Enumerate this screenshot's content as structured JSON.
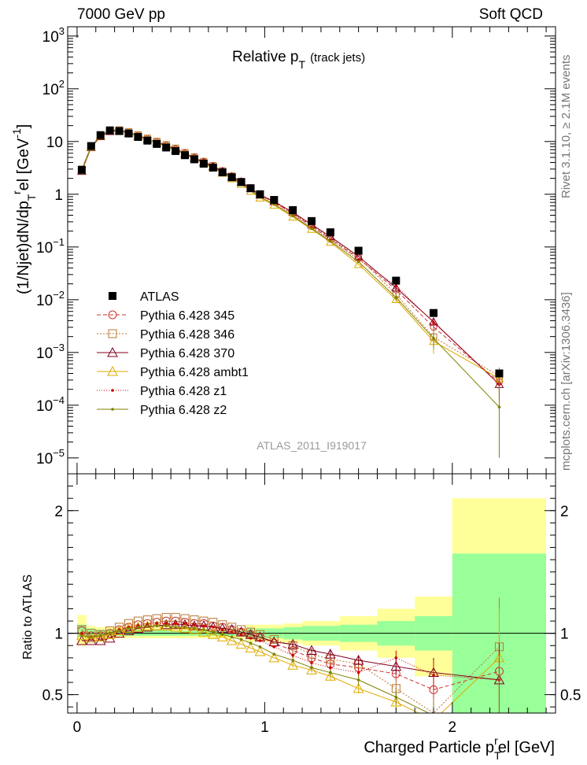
{
  "header": {
    "energy_label": "7000 GeV pp",
    "process_label": "Soft QCD",
    "panel_title": "Relative p",
    "panel_title_sub": "T",
    "panel_title_rest": "(track jets)",
    "analysis_id": "ATLAS_2011_I919017",
    "side_top": "Rivet 3.1.10, ≥ 2.1M events",
    "side_bottom": "mcplots.cern.ch [arXiv:1306.3436]"
  },
  "axes": {
    "y_main_label": "(1/Njet)dN/dp",
    "y_main_sub": "T",
    "y_main_sup": "r",
    "y_main_rest": "el [GeV",
    "y_main_exp": "-1",
    "y_main_close": "]",
    "y_ratio_label": "Ratio to ATLAS",
    "x_label": "Charged Particle p",
    "x_sub": "T",
    "x_sup": "r",
    "x_rest": "el [GeV]"
  },
  "chart_data": {
    "type": "line",
    "x": [
      0.025,
      0.075,
      0.125,
      0.175,
      0.225,
      0.275,
      0.325,
      0.375,
      0.425,
      0.475,
      0.525,
      0.575,
      0.625,
      0.675,
      0.725,
      0.775,
      0.825,
      0.875,
      0.925,
      0.975,
      1.05,
      1.15,
      1.25,
      1.35,
      1.5,
      1.7,
      1.9,
      2.25
    ],
    "xlim": [
      -0.05,
      2.55
    ],
    "ylim_main": [
      5e-06,
      1500
    ],
    "y_scale_main": "log",
    "ylim_ratio": [
      0.35,
      2.3
    ],
    "x_ticks": [
      0,
      1,
      2
    ],
    "x_tick_labels": [
      "0",
      "1",
      "2"
    ],
    "y_main_ticks": [
      {
        "v": 1000,
        "base": "10",
        "exp": "3"
      },
      {
        "v": 100,
        "base": "10",
        "exp": "2"
      },
      {
        "v": 10,
        "base": "10",
        "exp": ""
      },
      {
        "v": 1,
        "base": "1",
        "exp": ""
      },
      {
        "v": 0.1,
        "base": "10",
        "exp": "−1"
      },
      {
        "v": 0.01,
        "base": "10",
        "exp": "−2"
      },
      {
        "v": 0.001,
        "base": "10",
        "exp": "−3"
      },
      {
        "v": 0.0001,
        "base": "10",
        "exp": "−4"
      },
      {
        "v": 1e-05,
        "base": "10",
        "exp": "−5"
      }
    ],
    "y_ratio_ticks": [
      {
        "v": 0.5,
        "label": "0.5"
      },
      {
        "v": 1,
        "label": "1"
      },
      {
        "v": 2,
        "label": "2"
      }
    ],
    "data": {
      "name": "ATLAS",
      "values": [
        2.9,
        8.2,
        13.2,
        16.2,
        15.8,
        14.2,
        12.2,
        10.4,
        9.0,
        7.7,
        6.6,
        5.5,
        4.6,
        3.8,
        3.2,
        2.6,
        2.1,
        1.7,
        1.3,
        1.0,
        0.78,
        0.5,
        0.31,
        0.19,
        0.085,
        0.023,
        0.0056,
        0.0004
      ]
    },
    "bands": [
      {
        "x0": 0.0,
        "x1": 0.05,
        "inner": [
          0.97,
          1.07
        ],
        "outer": [
          0.9,
          1.15
        ]
      },
      {
        "x0": 0.05,
        "x1": 0.1,
        "inner": [
          0.97,
          1.04
        ],
        "outer": [
          0.94,
          1.06
        ]
      },
      {
        "x0": 0.1,
        "x1": 0.5,
        "inner": [
          0.98,
          1.03
        ],
        "outer": [
          0.96,
          1.05
        ]
      },
      {
        "x0": 0.5,
        "x1": 0.9,
        "inner": [
          0.98,
          1.02
        ],
        "outer": [
          0.96,
          1.04
        ]
      },
      {
        "x0": 0.9,
        "x1": 1.1,
        "inner": [
          0.96,
          1.04
        ],
        "outer": [
          0.93,
          1.07
        ]
      },
      {
        "x0": 1.1,
        "x1": 1.2,
        "inner": [
          0.95,
          1.05
        ],
        "outer": [
          0.92,
          1.08
        ]
      },
      {
        "x0": 1.2,
        "x1": 1.4,
        "inner": [
          0.94,
          1.06
        ],
        "outer": [
          0.9,
          1.1
        ]
      },
      {
        "x0": 1.4,
        "x1": 1.6,
        "inner": [
          0.93,
          1.07
        ],
        "outer": [
          0.86,
          1.14
        ]
      },
      {
        "x0": 1.6,
        "x1": 1.8,
        "inner": [
          0.9,
          1.1
        ],
        "outer": [
          0.8,
          1.2
        ]
      },
      {
        "x0": 1.8,
        "x1": 2.0,
        "inner": [
          0.86,
          1.14
        ],
        "outer": [
          0.65,
          1.3
        ]
      },
      {
        "x0": 2.0,
        "x1": 2.5,
        "inner": [
          0.35,
          1.65
        ],
        "outer": [
          0.35,
          2.1
        ]
      }
    ],
    "series": [
      {
        "name": "Pythia 6.428 345",
        "color": "#cc3333",
        "dash": "5,3",
        "marker": "circle",
        "ratio": [
          1.02,
          0.98,
          0.98,
          1.0,
          1.03,
          1.05,
          1.07,
          1.08,
          1.09,
          1.1,
          1.1,
          1.09,
          1.08,
          1.08,
          1.06,
          1.05,
          1.03,
          1.01,
          0.99,
          0.97,
          0.92,
          0.86,
          0.8,
          0.75,
          0.72,
          0.67,
          0.54,
          0.69
        ],
        "err": [
          0,
          0,
          0,
          0,
          0,
          0,
          0,
          0,
          0,
          0,
          0,
          0,
          0,
          0,
          0,
          0,
          0,
          0,
          0.01,
          0.01,
          0.01,
          0.02,
          0.02,
          0.03,
          0.04,
          0.06,
          0.12,
          0.3
        ]
      },
      {
        "name": "Pythia 6.428 346",
        "color": "#bb7733",
        "dash": "2,2",
        "marker": "square",
        "ratio": [
          1.03,
          1.0,
          0.99,
          1.02,
          1.05,
          1.08,
          1.1,
          1.11,
          1.12,
          1.13,
          1.13,
          1.12,
          1.11,
          1.1,
          1.09,
          1.07,
          1.05,
          1.03,
          1.01,
          0.99,
          0.95,
          0.9,
          0.83,
          0.79,
          0.75,
          0.55,
          0.35,
          0.89
        ],
        "err": [
          0,
          0,
          0,
          0,
          0,
          0,
          0,
          0,
          0,
          0,
          0,
          0,
          0,
          0,
          0,
          0,
          0,
          0,
          0.01,
          0.01,
          0.01,
          0.02,
          0.02,
          0.03,
          0.04,
          0.06,
          0.12,
          0.4
        ]
      },
      {
        "name": "Pythia 6.428 370",
        "color": "#800020",
        "dash": "",
        "marker": "triangle",
        "ratio": [
          0.94,
          0.94,
          0.94,
          0.96,
          1.0,
          1.02,
          1.04,
          1.05,
          1.06,
          1.07,
          1.07,
          1.07,
          1.06,
          1.06,
          1.05,
          1.04,
          1.03,
          1.01,
          0.99,
          0.97,
          0.93,
          0.91,
          0.86,
          0.83,
          0.78,
          0.73,
          0.68,
          0.62
        ],
        "err": [
          0,
          0,
          0,
          0,
          0,
          0,
          0,
          0,
          0,
          0,
          0,
          0,
          0,
          0,
          0,
          0,
          0,
          0,
          0.01,
          0.01,
          0.01,
          0.02,
          0.02,
          0.03,
          0.04,
          0.06,
          0.12,
          0.3
        ]
      },
      {
        "name": "Pythia 6.428 ambt1",
        "color": "#ddaa00",
        "dash": "",
        "marker": "triangle",
        "ratio": [
          0.98,
          0.96,
          0.97,
          0.99,
          1.02,
          1.04,
          1.05,
          1.06,
          1.06,
          1.06,
          1.05,
          1.04,
          1.03,
          1.01,
          0.99,
          0.97,
          0.94,
          0.91,
          0.88,
          0.85,
          0.8,
          0.74,
          0.7,
          0.65,
          0.55,
          0.44,
          0.29,
          0.8
        ],
        "err": [
          0,
          0,
          0,
          0,
          0,
          0,
          0,
          0,
          0,
          0,
          0,
          0,
          0,
          0,
          0,
          0,
          0,
          0,
          0.01,
          0.01,
          0.01,
          0.02,
          0.02,
          0.03,
          0.04,
          0.06,
          0.12,
          0.4
        ]
      },
      {
        "name": "Pythia 6.428 z1",
        "color": "#cc0000",
        "dash": "1,2",
        "marker": "dot",
        "ratio": [
          1.0,
          0.97,
          0.98,
          1.0,
          1.03,
          1.05,
          1.06,
          1.07,
          1.08,
          1.08,
          1.08,
          1.08,
          1.07,
          1.06,
          1.05,
          1.03,
          1.01,
          0.99,
          0.96,
          0.94,
          0.89,
          0.82,
          0.76,
          0.72,
          0.68,
          0.8,
          0.66,
          0.62
        ],
        "err": [
          0,
          0,
          0,
          0,
          0,
          0,
          0,
          0,
          0,
          0,
          0,
          0,
          0,
          0,
          0,
          0,
          0,
          0,
          0.01,
          0.01,
          0.01,
          0.02,
          0.02,
          0.03,
          0.04,
          0.06,
          0.12,
          0.3
        ]
      },
      {
        "name": "Pythia 6.428 z2",
        "color": "#808000",
        "dash": "",
        "marker": "dot",
        "ratio": [
          0.98,
          0.97,
          0.98,
          1.0,
          1.02,
          1.04,
          1.05,
          1.06,
          1.06,
          1.06,
          1.05,
          1.05,
          1.04,
          1.03,
          1.01,
          0.99,
          0.97,
          0.95,
          0.92,
          0.89,
          0.83,
          0.78,
          0.72,
          0.68,
          0.62,
          0.48,
          0.33,
          0.23
        ],
        "err": [
          0,
          0,
          0,
          0,
          0,
          0,
          0,
          0,
          0,
          0,
          0,
          0,
          0,
          0,
          0,
          0,
          0,
          0,
          0.01,
          0.01,
          0.01,
          0.02,
          0.02,
          0.03,
          0.04,
          0.06,
          0.12,
          0.6
        ]
      }
    ]
  }
}
